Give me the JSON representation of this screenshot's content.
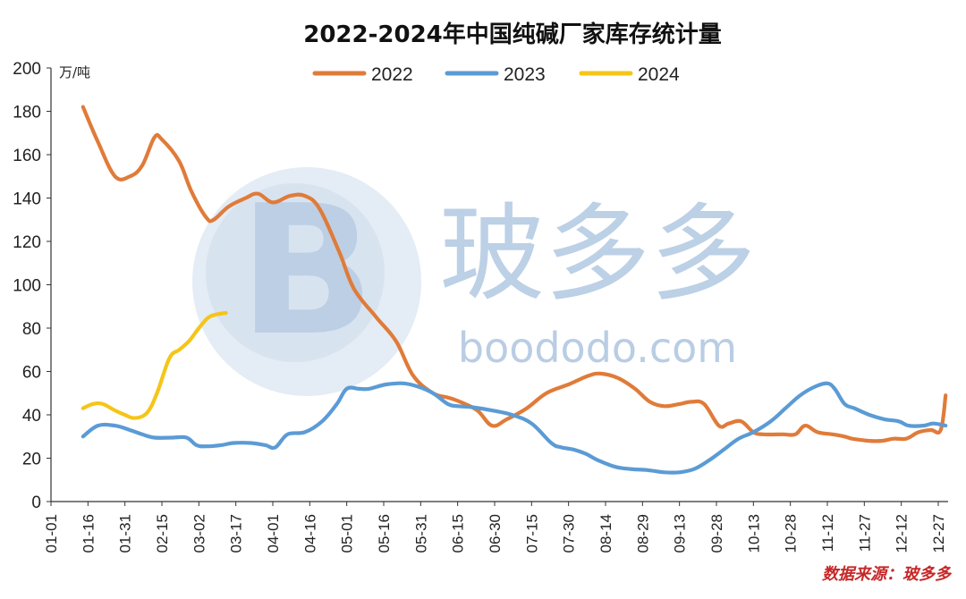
{
  "colors": {
    "2022": "#e07b39",
    "2023": "#5b9bd5",
    "2024": "#f5c518",
    "source": "#c62828"
  },
  "watermark": {
    "cn": "玻多多",
    "url": "boododo.com",
    "logo_letter": "B"
  },
  "source_text": "数据来源：玻多多",
  "chart_data": {
    "type": "line",
    "title": "2022-2024年中国纯碱厂家库存统计量",
    "ylabel": "万/吨",
    "xlabel": "",
    "ylim": [
      0,
      200
    ],
    "yticks": [
      0,
      20,
      40,
      60,
      80,
      100,
      120,
      140,
      160,
      180,
      200
    ],
    "x_range": [
      1,
      365
    ],
    "grid": false,
    "legend_position": "top",
    "xticks": [
      {
        "label": "01-01",
        "day": 1
      },
      {
        "label": "01-16",
        "day": 16
      },
      {
        "label": "01-31",
        "day": 31
      },
      {
        "label": "02-15",
        "day": 46
      },
      {
        "label": "03-02",
        "day": 61
      },
      {
        "label": "03-17",
        "day": 76
      },
      {
        "label": "04-01",
        "day": 91
      },
      {
        "label": "04-16",
        "day": 106
      },
      {
        "label": "05-01",
        "day": 121
      },
      {
        "label": "05-16",
        "day": 136
      },
      {
        "label": "05-31",
        "day": 151
      },
      {
        "label": "06-15",
        "day": 166
      },
      {
        "label": "06-30",
        "day": 181
      },
      {
        "label": "07-15",
        "day": 196
      },
      {
        "label": "07-30",
        "day": 211
      },
      {
        "label": "08-14",
        "day": 226
      },
      {
        "label": "08-29",
        "day": 241
      },
      {
        "label": "09-13",
        "day": 256
      },
      {
        "label": "09-28",
        "day": 271
      },
      {
        "label": "10-13",
        "day": 286
      },
      {
        "label": "10-28",
        "day": 301
      },
      {
        "label": "11-12",
        "day": 316
      },
      {
        "label": "11-27",
        "day": 331
      },
      {
        "label": "12-12",
        "day": 346
      },
      {
        "label": "12-27",
        "day": 361
      }
    ],
    "series": [
      {
        "name": "2022",
        "color": "#e07b39",
        "points": [
          [
            14,
            182
          ],
          [
            20,
            166
          ],
          [
            27,
            150
          ],
          [
            33,
            150
          ],
          [
            38,
            155
          ],
          [
            43,
            168
          ],
          [
            46,
            167
          ],
          [
            53,
            157
          ],
          [
            58,
            143
          ],
          [
            64,
            131
          ],
          [
            67,
            130
          ],
          [
            73,
            136
          ],
          [
            80,
            140
          ],
          [
            85,
            142
          ],
          [
            91,
            138
          ],
          [
            98,
            141
          ],
          [
            104,
            141
          ],
          [
            110,
            135
          ],
          [
            118,
            115
          ],
          [
            124,
            98
          ],
          [
            133,
            85
          ],
          [
            141,
            74
          ],
          [
            148,
            58
          ],
          [
            156,
            50
          ],
          [
            162,
            48
          ],
          [
            167,
            46
          ],
          [
            174,
            42
          ],
          [
            180,
            35
          ],
          [
            186,
            38
          ],
          [
            194,
            43
          ],
          [
            202,
            50
          ],
          [
            211,
            54
          ],
          [
            219,
            58
          ],
          [
            224,
            59
          ],
          [
            231,
            57
          ],
          [
            238,
            52
          ],
          [
            244,
            46
          ],
          [
            250,
            44
          ],
          [
            256,
            45
          ],
          [
            261,
            46
          ],
          [
            266,
            45
          ],
          [
            272,
            35
          ],
          [
            276,
            36
          ],
          [
            281,
            37
          ],
          [
            286,
            32
          ],
          [
            290,
            31
          ],
          [
            298,
            31
          ],
          [
            303,
            31
          ],
          [
            307,
            35
          ],
          [
            312,
            32
          ],
          [
            318,
            31
          ],
          [
            323,
            30
          ],
          [
            326,
            29
          ],
          [
            333,
            28
          ],
          [
            338,
            28
          ],
          [
            343,
            29
          ],
          [
            348,
            29
          ],
          [
            353,
            32
          ],
          [
            358,
            33
          ],
          [
            362,
            33
          ],
          [
            364,
            49
          ]
        ]
      },
      {
        "name": "2023",
        "color": "#5b9bd5",
        "points": [
          [
            14,
            30
          ],
          [
            20,
            35
          ],
          [
            27,
            35
          ],
          [
            33,
            33
          ],
          [
            38,
            31
          ],
          [
            43,
            29.5
          ],
          [
            50,
            29.5
          ],
          [
            56,
            29.5
          ],
          [
            60,
            26
          ],
          [
            64,
            25.5
          ],
          [
            70,
            26
          ],
          [
            75,
            27
          ],
          [
            82,
            27
          ],
          [
            88,
            26
          ],
          [
            92,
            25
          ],
          [
            97,
            31
          ],
          [
            104,
            32
          ],
          [
            111,
            37
          ],
          [
            117,
            45
          ],
          [
            121,
            52
          ],
          [
            126,
            52
          ],
          [
            130,
            52
          ],
          [
            137,
            54
          ],
          [
            144,
            54.5
          ],
          [
            150,
            53
          ],
          [
            156,
            50
          ],
          [
            162,
            45
          ],
          [
            166,
            44
          ],
          [
            172,
            43.5
          ],
          [
            180,
            42
          ],
          [
            188,
            40
          ],
          [
            196,
            36
          ],
          [
            204,
            27
          ],
          [
            208,
            25
          ],
          [
            213,
            24
          ],
          [
            218,
            22
          ],
          [
            223,
            19
          ],
          [
            230,
            16
          ],
          [
            236,
            15
          ],
          [
            243,
            14.5
          ],
          [
            250,
            13.5
          ],
          [
            256,
            13.5
          ],
          [
            262,
            15
          ],
          [
            268,
            19
          ],
          [
            274,
            24
          ],
          [
            280,
            29
          ],
          [
            286,
            32
          ],
          [
            293,
            37
          ],
          [
            299,
            43
          ],
          [
            305,
            49
          ],
          [
            311,
            53
          ],
          [
            316,
            54.5
          ],
          [
            319,
            52
          ],
          [
            323,
            45
          ],
          [
            327,
            43
          ],
          [
            333,
            40
          ],
          [
            339,
            38
          ],
          [
            345,
            37
          ],
          [
            349,
            35
          ],
          [
            355,
            35
          ],
          [
            359,
            36
          ],
          [
            364,
            35
          ]
        ]
      },
      {
        "name": "2024",
        "color": "#f5c518",
        "points": [
          [
            14,
            43
          ],
          [
            18,
            45
          ],
          [
            22,
            45
          ],
          [
            27,
            42
          ],
          [
            31,
            40
          ],
          [
            35,
            38.5
          ],
          [
            40,
            41
          ],
          [
            44,
            50
          ],
          [
            49,
            66
          ],
          [
            53,
            70
          ],
          [
            57,
            74
          ],
          [
            61,
            80
          ],
          [
            65,
            85
          ],
          [
            69,
            86.5
          ],
          [
            72,
            87
          ]
        ]
      }
    ]
  }
}
